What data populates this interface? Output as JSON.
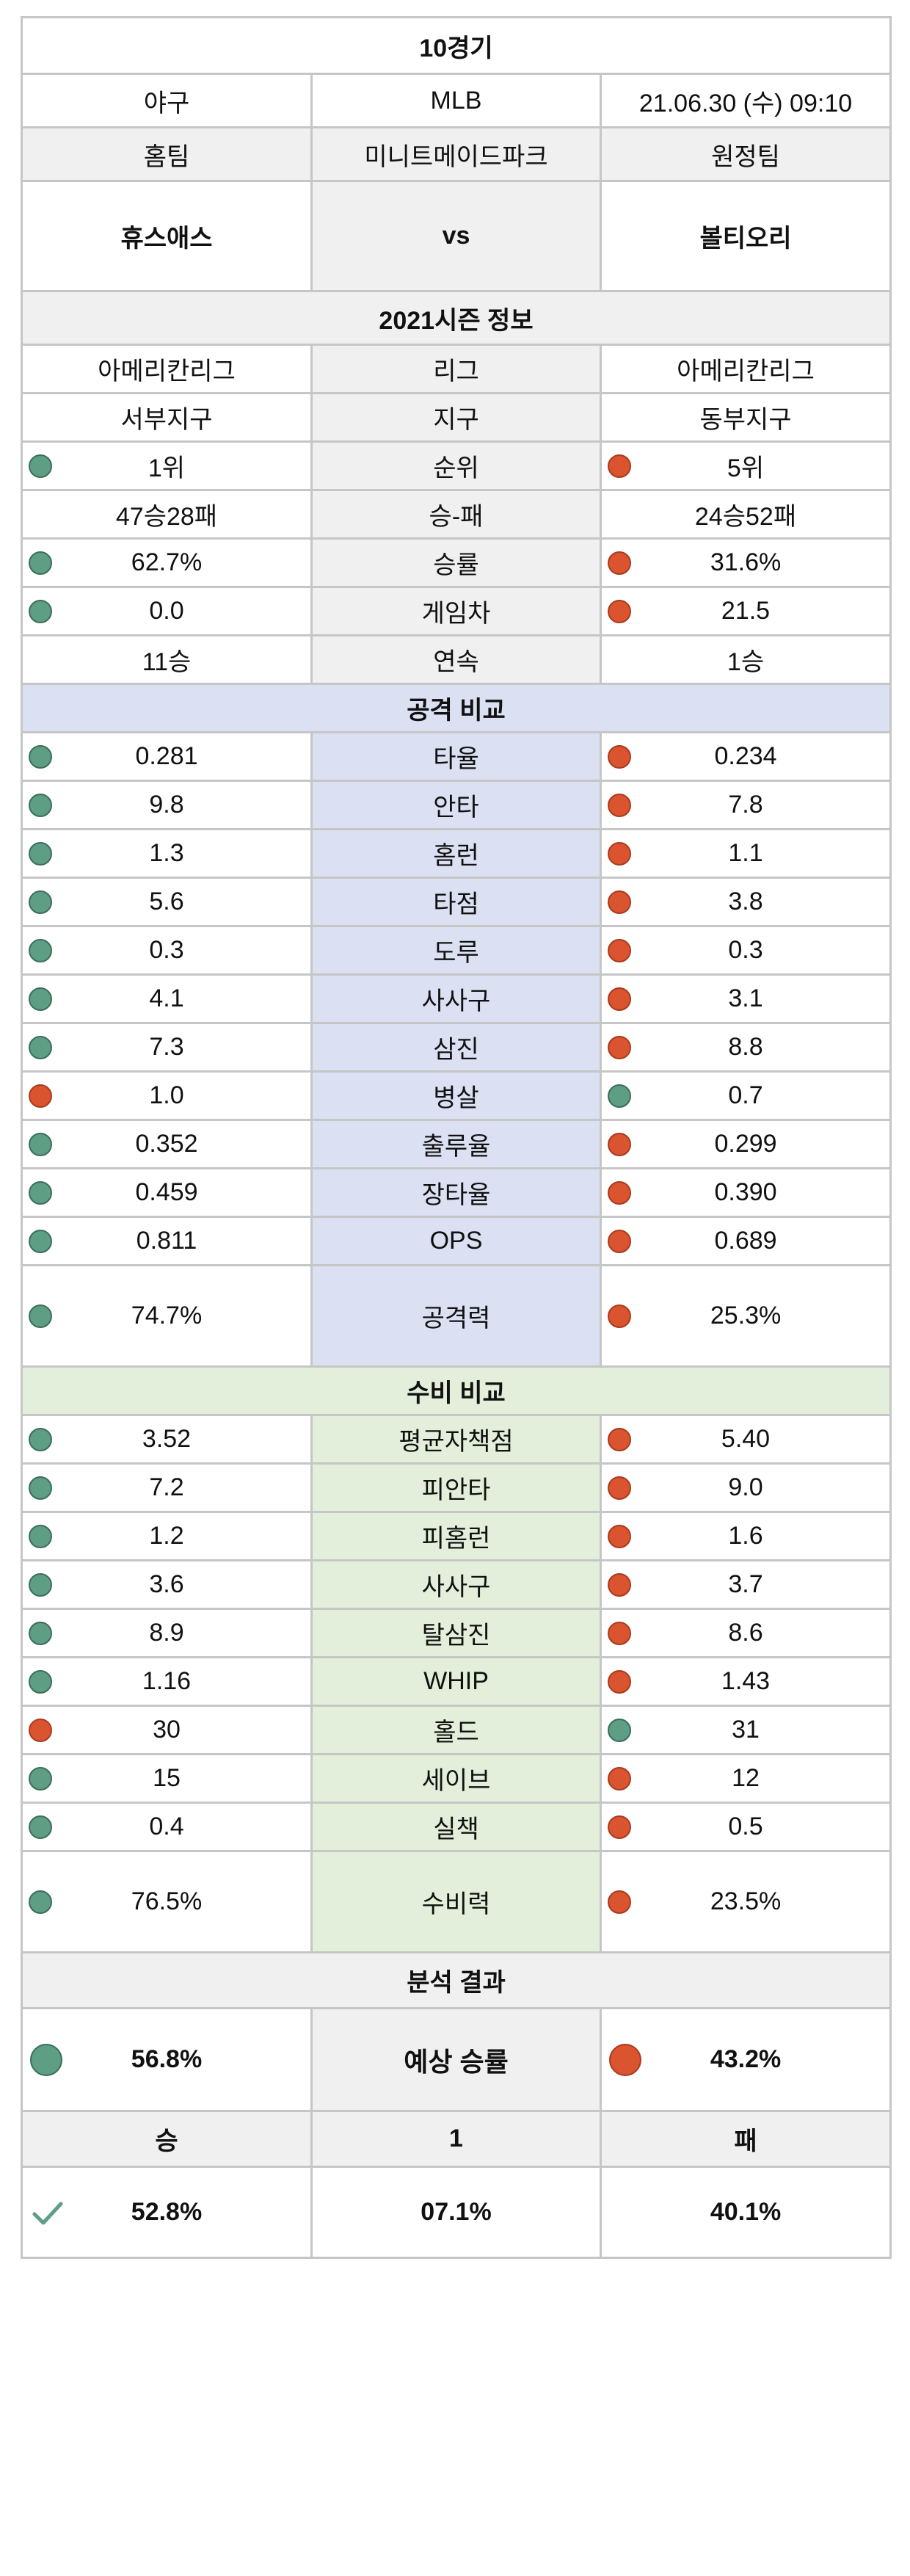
{
  "header": {
    "title": "10경기",
    "sport": "야구",
    "league": "MLB",
    "datetime": "21.06.30 (수) 09:10"
  },
  "teams": {
    "home_label": "홈팀",
    "stadium": "미니트메이드파크",
    "away_label": "원정팀",
    "home_name": "휴스애스",
    "vs": "vs",
    "away_name": "볼티오리"
  },
  "season": {
    "section_title": "2021시즌 정보",
    "rows": [
      {
        "home": "아메리칸리그",
        "label": "리그",
        "away": "아메리칸리그",
        "home_dot": "",
        "away_dot": ""
      },
      {
        "home": "서부지구",
        "label": "지구",
        "away": "동부지구",
        "home_dot": "",
        "away_dot": ""
      },
      {
        "home": "1위",
        "label": "순위",
        "away": "5위",
        "home_dot": "green",
        "away_dot": "orange"
      },
      {
        "home": "47승28패",
        "label": "승-패",
        "away": "24승52패",
        "home_dot": "",
        "away_dot": ""
      },
      {
        "home": "62.7%",
        "label": "승률",
        "away": "31.6%",
        "home_dot": "green",
        "away_dot": "orange"
      },
      {
        "home": "0.0",
        "label": "게임차",
        "away": "21.5",
        "home_dot": "green",
        "away_dot": "orange"
      },
      {
        "home": "11승",
        "label": "연속",
        "away": "1승",
        "home_dot": "",
        "away_dot": ""
      }
    ]
  },
  "offense": {
    "section_title": "공격 비교",
    "rows": [
      {
        "home": "0.281",
        "label": "타율",
        "away": "0.234",
        "home_dot": "green",
        "away_dot": "orange"
      },
      {
        "home": "9.8",
        "label": "안타",
        "away": "7.8",
        "home_dot": "green",
        "away_dot": "orange"
      },
      {
        "home": "1.3",
        "label": "홈런",
        "away": "1.1",
        "home_dot": "green",
        "away_dot": "orange"
      },
      {
        "home": "5.6",
        "label": "타점",
        "away": "3.8",
        "home_dot": "green",
        "away_dot": "orange"
      },
      {
        "home": "0.3",
        "label": "도루",
        "away": "0.3",
        "home_dot": "green",
        "away_dot": "orange"
      },
      {
        "home": "4.1",
        "label": "사사구",
        "away": "3.1",
        "home_dot": "green",
        "away_dot": "orange"
      },
      {
        "home": "7.3",
        "label": "삼진",
        "away": "8.8",
        "home_dot": "green",
        "away_dot": "orange"
      },
      {
        "home": "1.0",
        "label": "병살",
        "away": "0.7",
        "home_dot": "orange",
        "away_dot": "green"
      },
      {
        "home": "0.352",
        "label": "출루율",
        "away": "0.299",
        "home_dot": "green",
        "away_dot": "orange"
      },
      {
        "home": "0.459",
        "label": "장타율",
        "away": "0.390",
        "home_dot": "green",
        "away_dot": "orange"
      },
      {
        "home": "0.811",
        "label": "OPS",
        "away": "0.689",
        "home_dot": "green",
        "away_dot": "orange"
      }
    ],
    "total": {
      "home": "74.7%",
      "label": "공격력",
      "away": "25.3%",
      "home_dot": "green",
      "away_dot": "orange"
    }
  },
  "defense": {
    "section_title": "수비 비교",
    "rows": [
      {
        "home": "3.52",
        "label": "평균자책점",
        "away": "5.40",
        "home_dot": "green",
        "away_dot": "orange"
      },
      {
        "home": "7.2",
        "label": "피안타",
        "away": "9.0",
        "home_dot": "green",
        "away_dot": "orange"
      },
      {
        "home": "1.2",
        "label": "피홈런",
        "away": "1.6",
        "home_dot": "green",
        "away_dot": "orange"
      },
      {
        "home": "3.6",
        "label": "사사구",
        "away": "3.7",
        "home_dot": "green",
        "away_dot": "orange"
      },
      {
        "home": "8.9",
        "label": "탈삼진",
        "away": "8.6",
        "home_dot": "green",
        "away_dot": "orange"
      },
      {
        "home": "1.16",
        "label": "WHIP",
        "away": "1.43",
        "home_dot": "green",
        "away_dot": "orange"
      },
      {
        "home": "30",
        "label": "홀드",
        "away": "31",
        "home_dot": "orange",
        "away_dot": "green"
      },
      {
        "home": "15",
        "label": "세이브",
        "away": "12",
        "home_dot": "green",
        "away_dot": "orange"
      },
      {
        "home": "0.4",
        "label": "실책",
        "away": "0.5",
        "home_dot": "green",
        "away_dot": "orange"
      }
    ],
    "total": {
      "home": "76.5%",
      "label": "수비력",
      "away": "23.5%",
      "home_dot": "green",
      "away_dot": "orange"
    }
  },
  "analysis": {
    "section_title": "분석 결과",
    "home_rate": "56.8%",
    "label": "예상 승률",
    "away_rate": "43.2%",
    "win_label": "승",
    "draw_label": "1",
    "lose_label": "패",
    "win_pct": "52.8%",
    "draw_pct": "07.1%",
    "lose_pct": "40.1%"
  },
  "colors": {
    "green_dot": "#5d9e84",
    "orange_dot": "#d9542f",
    "offense_bg": "#dbe1f3",
    "defense_bg": "#e3efda",
    "section_bg": "#f0f0f0",
    "check": "#5d9e84"
  }
}
